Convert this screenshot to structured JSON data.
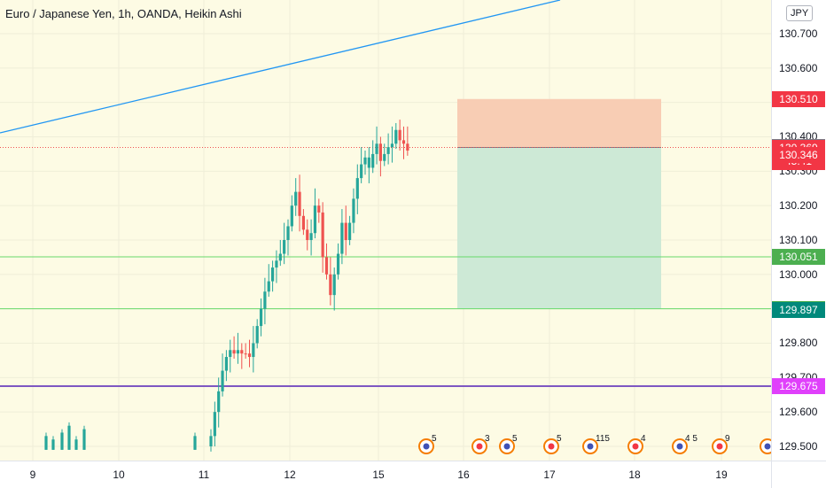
{
  "header": {
    "title": "Euro / Japanese Yen, 1h, OANDA, Heikin Ashi"
  },
  "axis": {
    "currency": "JPY",
    "price_ticks": [
      "130.700",
      "130.600",
      "130.500",
      "130.400",
      "130.300",
      "130.200",
      "130.100",
      "130.000",
      "129.900",
      "129.800",
      "129.700",
      "129.600",
      "129.500"
    ],
    "price_values": [
      130.7,
      130.6,
      130.5,
      130.4,
      130.3,
      130.2,
      130.1,
      130.0,
      129.9,
      129.8,
      129.7,
      129.6,
      129.5
    ],
    "time_labels": [
      "9",
      "10",
      "11",
      "12",
      "15",
      "16",
      "17",
      "18",
      "19"
    ]
  },
  "price_tags": [
    {
      "label": "130.510",
      "value": 130.51,
      "color": "#f23645"
    },
    {
      "label": "130.371",
      "value": 130.371,
      "color": "#787b86"
    },
    {
      "label": "130.369",
      "sub": "45:41",
      "value": 130.369,
      "color": "#f23645"
    },
    {
      "label": "130.346",
      "value": 130.346,
      "color": "#f23645"
    },
    {
      "label": "130.051",
      "value": 130.051,
      "color": "#4caf50"
    },
    {
      "label": "129.900",
      "value": 129.9,
      "color": "#4caf50"
    },
    {
      "label": "129.897",
      "value": 129.897,
      "color": "#00897b"
    },
    {
      "label": "129.675",
      "value": 129.675,
      "color": "#e040fb"
    }
  ],
  "levels": {
    "green_1": 130.051,
    "green_2": 129.9,
    "purple": 129.675,
    "last": 130.369
  },
  "position_tool": {
    "entry": 130.369,
    "stop": 130.51,
    "target": 129.9
  },
  "events": [
    {
      "count": "5"
    },
    {
      "count": "3"
    },
    {
      "count": "5"
    },
    {
      "count": "5"
    },
    {
      "count": "115"
    },
    {
      "count": "4"
    },
    {
      "count": "4 5"
    },
    {
      "count": "9"
    }
  ],
  "colors": {
    "up": "#26a69a",
    "down": "#ef5350",
    "trendline": "#2196f3",
    "session_bg": "#fdfbe4",
    "loss_zone": "#f8cdb4",
    "profit_zone": "#cde9d6"
  }
}
